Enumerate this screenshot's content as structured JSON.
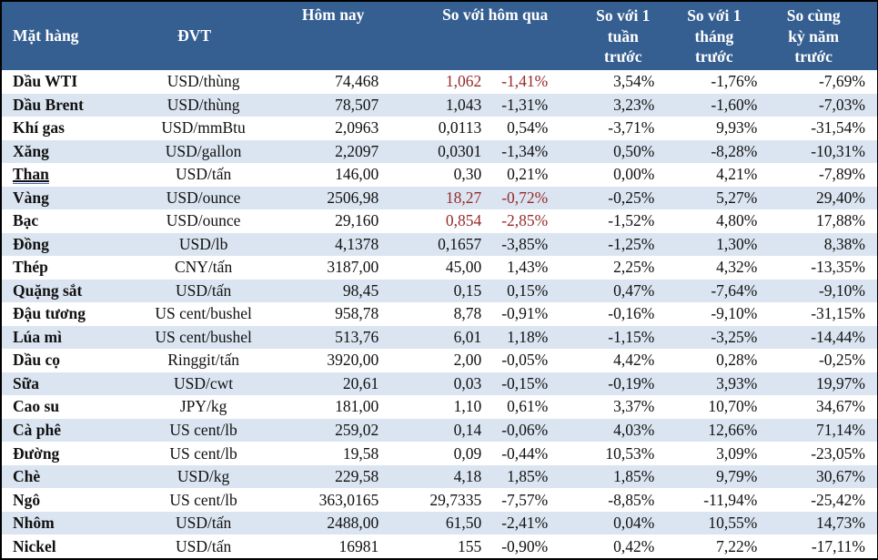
{
  "colors": {
    "header_bg": "#365F91",
    "header_text": "#FFFFFF",
    "alt_row_bg": "#DBE5F1",
    "negative_highlight_red": "#962A2A",
    "body_text": "#111111",
    "outer_border": "#000000"
  },
  "table": {
    "headers": {
      "item": "Mặt hàng",
      "unit": "ĐVT",
      "today": "Hôm nay",
      "vs_yesterday": "So với hôm qua",
      "vs_week": "So với 1\ntuần\ntrước",
      "vs_month": "So với 1\ntháng\ntrước",
      "vs_year": "So cùng\nkỳ năm\ntrước"
    },
    "rows": [
      {
        "name": "Dầu WTI",
        "unit": "USD/thùng",
        "today": "74,468",
        "change": "1,062",
        "change_pct": "-1,41%",
        "week": "3,54%",
        "month": "-1,76%",
        "year": "-7,69%",
        "red": true,
        "underlined": false
      },
      {
        "name": "Dầu Brent",
        "unit": "USD/thùng",
        "today": "78,507",
        "change": "1,043",
        "change_pct": "-1,31%",
        "week": "3,23%",
        "month": "-1,60%",
        "year": "-7,03%",
        "red": false,
        "underlined": false
      },
      {
        "name": "Khí gas",
        "unit": "USD/mmBtu",
        "today": "2,0963",
        "change": "0,0113",
        "change_pct": "0,54%",
        "week": "-3,71%",
        "month": "9,93%",
        "year": "-31,54%",
        "red": false,
        "underlined": false
      },
      {
        "name": "Xăng",
        "unit": "USD/gallon",
        "today": "2,2097",
        "change": "0,0301",
        "change_pct": "-1,34%",
        "week": "0,50%",
        "month": "-8,28%",
        "year": "-10,31%",
        "red": false,
        "underlined": false
      },
      {
        "name": "Than",
        "unit": "USD/tấn",
        "today": "146,00",
        "change": "0,30",
        "change_pct": "0,21%",
        "week": "0,00%",
        "month": "4,21%",
        "year": "-7,89%",
        "red": false,
        "underlined": true
      },
      {
        "name": "Vàng",
        "unit": "USD/ounce",
        "today": "2506,98",
        "change": "18,27",
        "change_pct": "-0,72%",
        "week": "-0,25%",
        "month": "5,27%",
        "year": "29,40%",
        "red": true,
        "underlined": false
      },
      {
        "name": "Bạc",
        "unit": "USD/ounce",
        "today": "29,160",
        "change": "0,854",
        "change_pct": "-2,85%",
        "week": "-1,52%",
        "month": "4,80%",
        "year": "17,88%",
        "red": true,
        "underlined": false
      },
      {
        "name": "Đồng",
        "unit": "USD/lb",
        "today": "4,1378",
        "change": "0,1657",
        "change_pct": "-3,85%",
        "week": "-1,25%",
        "month": "1,30%",
        "year": "8,38%",
        "red": false,
        "underlined": false
      },
      {
        "name": "Thép",
        "unit": "CNY/tấn",
        "today": "3187,00",
        "change": "45,00",
        "change_pct": "1,43%",
        "week": "2,25%",
        "month": "4,32%",
        "year": "-13,35%",
        "red": false,
        "underlined": false
      },
      {
        "name": "Quặng sắt",
        "unit": "USD/tấn",
        "today": "98,45",
        "change": "0,15",
        "change_pct": "0,15%",
        "week": "0,47%",
        "month": "-7,64%",
        "year": "-9,10%",
        "red": false,
        "underlined": false
      },
      {
        "name": "Đậu tương",
        "unit": "US cent/bushel",
        "today": "958,78",
        "change": "8,78",
        "change_pct": "-0,91%",
        "week": "-0,16%",
        "month": "-9,10%",
        "year": "-31,15%",
        "red": false,
        "underlined": false
      },
      {
        "name": "Lúa mì",
        "unit": "US cent/bushel",
        "today": "513,76",
        "change": "6,01",
        "change_pct": "1,18%",
        "week": "-1,15%",
        "month": "-3,25%",
        "year": "-14,44%",
        "red": false,
        "underlined": false
      },
      {
        "name": "Dầu cọ",
        "unit": "Ringgit/tấn",
        "today": "3920,00",
        "change": "2,00",
        "change_pct": "-0,05%",
        "week": "4,42%",
        "month": "0,28%",
        "year": "-0,25%",
        "red": false,
        "underlined": false
      },
      {
        "name": "Sữa",
        "unit": "USD/cwt",
        "today": "20,61",
        "change": "0,03",
        "change_pct": "-0,15%",
        "week": "-0,19%",
        "month": "3,93%",
        "year": "19,97%",
        "red": false,
        "underlined": false
      },
      {
        "name": "Cao su",
        "unit": "JPY/kg",
        "today": "181,00",
        "change": "1,10",
        "change_pct": "0,61%",
        "week": "3,37%",
        "month": "10,70%",
        "year": "34,67%",
        "red": false,
        "underlined": false
      },
      {
        "name": "Cà phê",
        "unit": "US cent/lb",
        "today": "259,02",
        "change": "0,14",
        "change_pct": "-0,06%",
        "week": "4,03%",
        "month": "12,66%",
        "year": "71,14%",
        "red": false,
        "underlined": false
      },
      {
        "name": "Đường",
        "unit": "US cent/lb",
        "today": "19,58",
        "change": "0,09",
        "change_pct": "-0,44%",
        "week": "10,53%",
        "month": "3,09%",
        "year": "-23,05%",
        "red": false,
        "underlined": false
      },
      {
        "name": "Chè",
        "unit": "USD/kg",
        "today": "229,58",
        "change": "4,18",
        "change_pct": "1,85%",
        "week": "1,85%",
        "month": "9,79%",
        "year": "30,67%",
        "red": false,
        "underlined": false
      },
      {
        "name": "Ngô",
        "unit": "US cent/lb",
        "today": "363,0165",
        "change": "29,7335",
        "change_pct": "-7,57%",
        "week": "-8,85%",
        "month": "-11,94%",
        "year": "-25,42%",
        "red": false,
        "underlined": false
      },
      {
        "name": "Nhôm",
        "unit": "USD/tấn",
        "today": "2488,00",
        "change": "61,50",
        "change_pct": "-2,41%",
        "week": "0,04%",
        "month": "10,55%",
        "year": "14,73%",
        "red": false,
        "underlined": false
      },
      {
        "name": "Nickel",
        "unit": "USD/tấn",
        "today": "16981",
        "change": "155",
        "change_pct": "-0,90%",
        "week": "0,42%",
        "month": "7,22%",
        "year": "-17,11%",
        "red": false,
        "underlined": false
      }
    ]
  }
}
